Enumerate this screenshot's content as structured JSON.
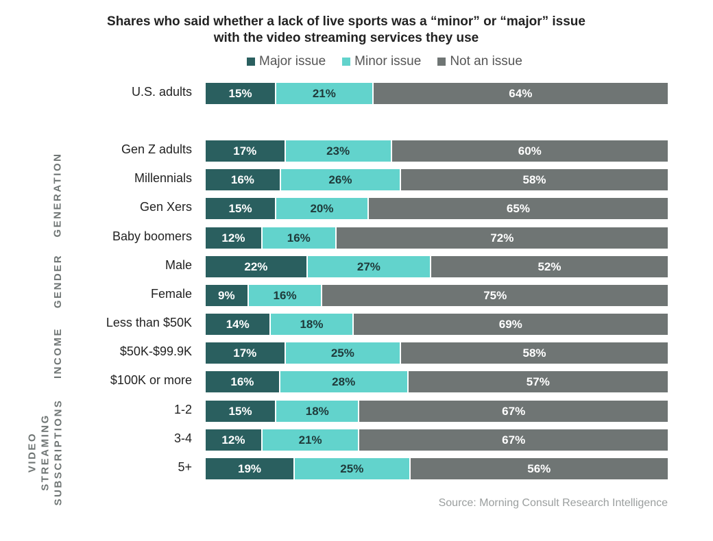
{
  "chart_data": {
    "type": "bar",
    "orientation": "horizontal",
    "stacked": true,
    "title": "Shares who said whether a lack of live sports was a “minor” or “major” issue with the video streaming services they use",
    "title_lines": [
      "Shares who said whether a lack of live sports was a “minor” or “major” issue",
      "with the video streaming services they use"
    ],
    "legend_position": "top-center",
    "unit": "%",
    "xlim": [
      0,
      100
    ],
    "series": [
      {
        "name": "Major issue",
        "color": "#2a5f5f"
      },
      {
        "name": "Minor issue",
        "color": "#62d3cc"
      },
      {
        "name": "Not an issue",
        "color": "#6f7574"
      }
    ],
    "groups": [
      {
        "label": "",
        "rows": [
          0
        ]
      },
      {
        "label": "GENERATION",
        "rows": [
          1,
          2,
          3,
          4
        ]
      },
      {
        "label": "GENDER",
        "rows": [
          5,
          6
        ]
      },
      {
        "label": "INCOME",
        "rows": [
          7,
          8,
          9
        ]
      },
      {
        "label": "VIDEO STREAMING SUBSCRIPTIONS",
        "label_lines": [
          "VIDEO",
          "STREAMING",
          "SUBSCRIPTIONS"
        ],
        "rows": [
          10,
          11,
          12
        ]
      }
    ],
    "categories": [
      "U.S. adults",
      "Gen Z adults",
      "Millennials",
      "Gen Xers",
      "Baby boomers",
      "Male",
      "Female",
      "Less than $50K",
      "$50K-$99.9K",
      "$100K or more",
      "1-2",
      "3-4",
      "5+"
    ],
    "values": [
      [
        15,
        21,
        64
      ],
      [
        17,
        23,
        60
      ],
      [
        16,
        26,
        58
      ],
      [
        15,
        20,
        65
      ],
      [
        12,
        16,
        72
      ],
      [
        22,
        27,
        52
      ],
      [
        9,
        16,
        75
      ],
      [
        14,
        18,
        69
      ],
      [
        17,
        25,
        58
      ],
      [
        16,
        28,
        57
      ],
      [
        15,
        18,
        67
      ],
      [
        12,
        21,
        67
      ],
      [
        19,
        25,
        56
      ]
    ],
    "source": "Source: Morning Consult Research Intelligence"
  }
}
